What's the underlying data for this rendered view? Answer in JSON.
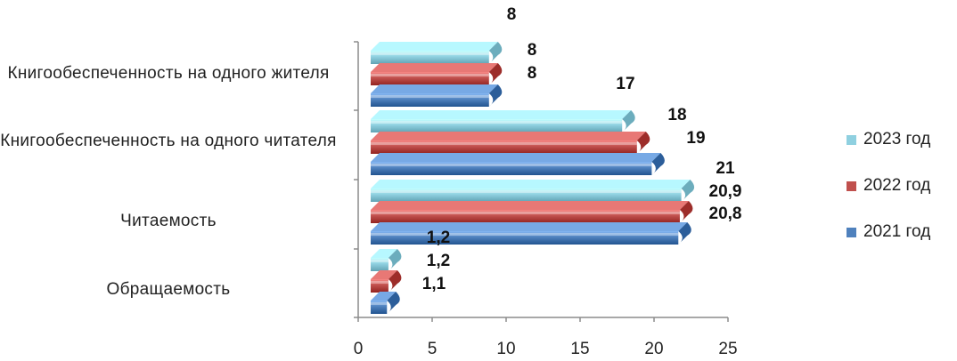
{
  "chart_data": {
    "type": "bar",
    "orientation": "horizontal",
    "categories": [
      "Книгообеспеченность на одного жителя",
      "Книгообеспеченность на одного читателя",
      "Читаемость",
      "Обращаемость"
    ],
    "series": [
      {
        "name": "2021 год",
        "color": "#4F81BD",
        "values": [
          8,
          19,
          20.8,
          1.1
        ],
        "labels": [
          "8",
          "19",
          "20,8",
          "1,1"
        ]
      },
      {
        "name": "2022 год",
        "color": "#C0504D",
        "values": [
          8,
          18,
          20.9,
          1.2
        ],
        "labels": [
          "8",
          "18",
          "20,9",
          "1,2"
        ]
      },
      {
        "name": "2023 год",
        "color": "#8FD0E0",
        "values": [
          8,
          17,
          21,
          1.2
        ],
        "labels": [
          "8",
          "17",
          "21",
          "1,2"
        ]
      }
    ],
    "xlim": [
      0,
      25
    ],
    "xticks": [
      0,
      5,
      10,
      15,
      20,
      25
    ],
    "legend_order": [
      "2023 год",
      "2022 год",
      "2021 год"
    ],
    "legend_position": "right",
    "grid": false,
    "style": "3d-cylinder"
  }
}
